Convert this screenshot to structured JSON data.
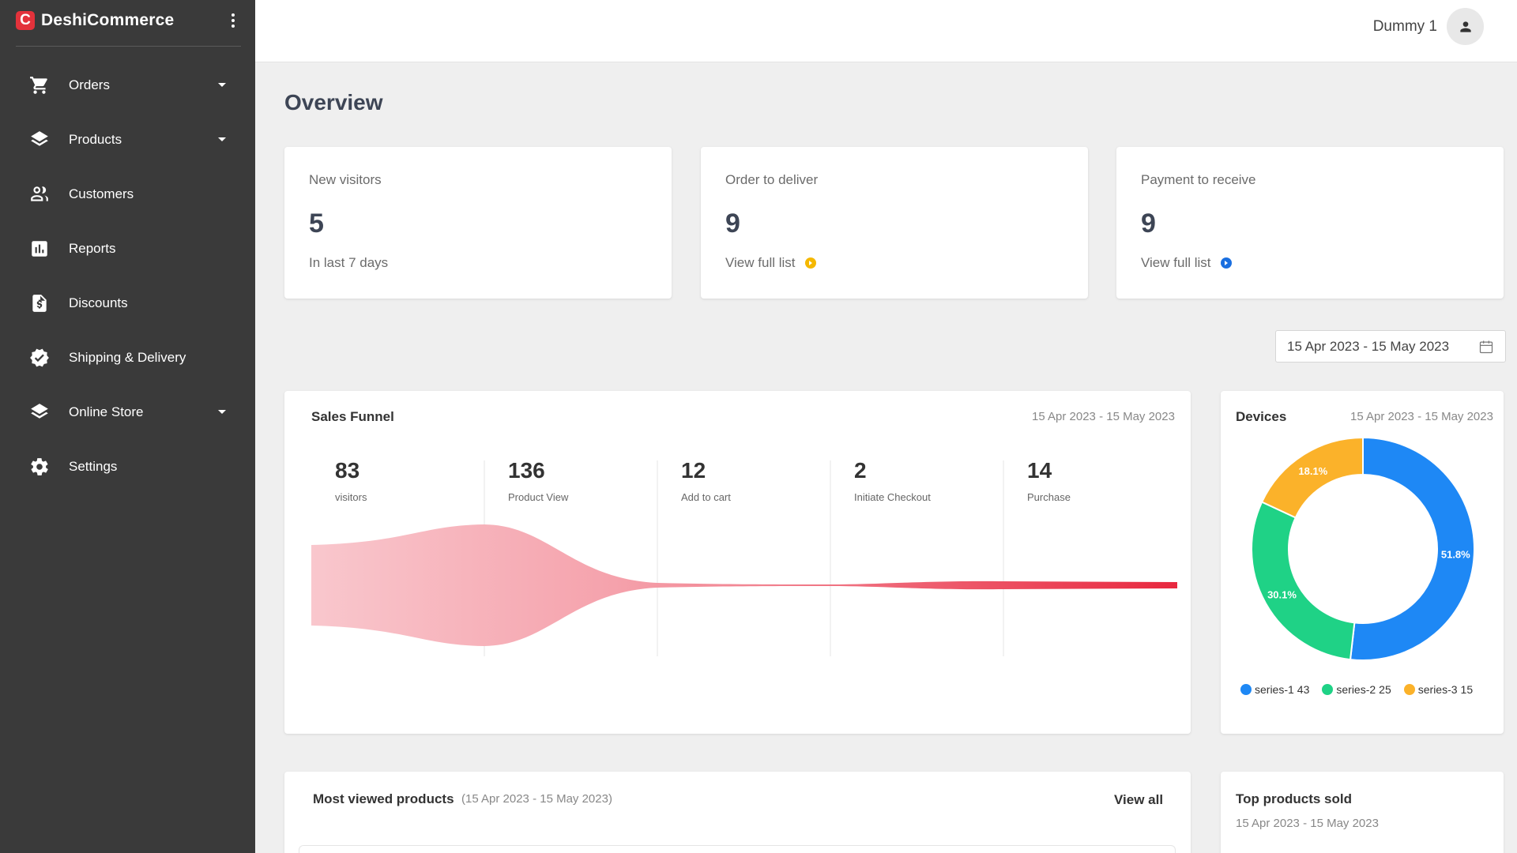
{
  "brand": {
    "name": "DeshiCommerce",
    "logo_letter": "C",
    "accent": "#e3323b"
  },
  "sidebar": {
    "items": [
      {
        "label": "Orders",
        "icon": "cart-icon",
        "has_caret": true
      },
      {
        "label": "Products",
        "icon": "layers-icon",
        "has_caret": true
      },
      {
        "label": "Customers",
        "icon": "users-icon",
        "has_caret": false
      },
      {
        "label": "Reports",
        "icon": "bar-chart-icon",
        "has_caret": false
      },
      {
        "label": "Discounts",
        "icon": "dollar-document-icon",
        "has_caret": false
      },
      {
        "label": "Shipping & Delivery",
        "icon": "verified-badge-icon",
        "has_caret": false
      },
      {
        "label": "Online Store",
        "icon": "layers-icon",
        "has_caret": true
      },
      {
        "label": "Settings",
        "icon": "gear-icon",
        "has_caret": false
      }
    ]
  },
  "header": {
    "user_name": "Dummy 1"
  },
  "page": {
    "title": "Overview"
  },
  "stats": [
    {
      "label": "New visitors",
      "value": "5",
      "sub": "In last 7 days"
    },
    {
      "label": "Order to deliver",
      "value": "9",
      "sub": "View full list",
      "icon_color": "#f5b800"
    },
    {
      "label": "Payment to receive",
      "value": "9",
      "sub": "View full list",
      "icon_color": "#1a6fe0"
    }
  ],
  "date_range": "15 Apr 2023 - 15 May 2023",
  "sales_funnel": {
    "title": "Sales Funnel",
    "date": "15 Apr 2023 - 15 May 2023",
    "stages": [
      {
        "value": "83",
        "label": "visitors"
      },
      {
        "value": "136",
        "label": "Product View"
      },
      {
        "value": "12",
        "label": "Add to cart"
      },
      {
        "value": "2",
        "label": "Initiate Checkout"
      },
      {
        "value": "14",
        "label": "Purchase"
      }
    ]
  },
  "devices": {
    "title": "Devices",
    "date": "15 Apr 2023 - 15 May 2023",
    "chart_data": {
      "type": "pie",
      "series": [
        {
          "name": "series-1",
          "value": 43,
          "percent_label": "51.8%",
          "color": "#1e88f5"
        },
        {
          "name": "series-2",
          "value": 25,
          "percent_label": "30.1%",
          "color": "#1fd286"
        },
        {
          "name": "series-3",
          "value": 15,
          "percent_label": "18.1%",
          "color": "#fbb22a"
        }
      ]
    }
  },
  "most_viewed": {
    "title": "Most viewed products",
    "date": "(15 Apr 2023 - 15 May 2023)",
    "view_all": "View all"
  },
  "top_products": {
    "title": "Top products sold",
    "date": "15 Apr 2023 - 15 May 2023"
  }
}
